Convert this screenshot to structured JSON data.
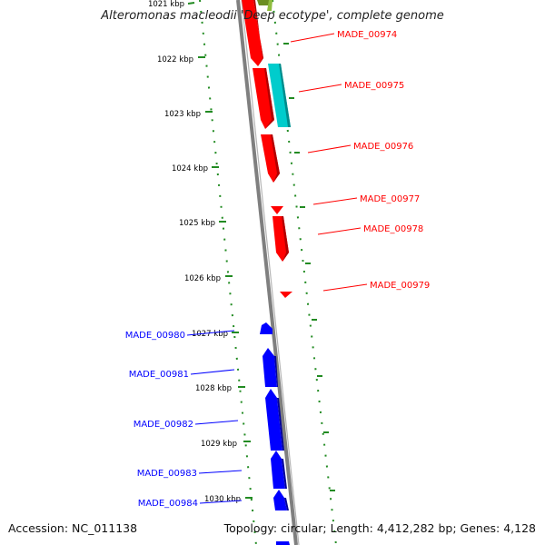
{
  "title": "Alteromonas macleodii 'Deep ecotype', complete genome",
  "accession_label": "Accession: NC_011138",
  "summary_label": "Topology: circular; Length: 4,412,282 bp; Genes: 4,128",
  "colors": {
    "forward_strand": "#ff0000",
    "reverse_strand": "#0000ff",
    "highlight": "#00cccc",
    "olive": "#6b8e23",
    "backbone": "#808080",
    "ruler": "#228b22",
    "text": "#000000"
  },
  "ruler_labels": [
    "1021 kbp",
    "1022 kbp",
    "1023 kbp",
    "1024 kbp",
    "1025 kbp",
    "1026 kbp",
    "1027 kbp",
    "1028 kbp",
    "1029 kbp",
    "1030 kbp"
  ],
  "genes": [
    {
      "name": "MADE_00974",
      "strand": "forward"
    },
    {
      "name": "MADE_00975",
      "strand": "forward"
    },
    {
      "name": "MADE_00976",
      "strand": "forward"
    },
    {
      "name": "MADE_00977",
      "strand": "forward"
    },
    {
      "name": "MADE_00978",
      "strand": "forward"
    },
    {
      "name": "MADE_00979",
      "strand": "forward"
    },
    {
      "name": "MADE_00980",
      "strand": "reverse"
    },
    {
      "name": "MADE_00981",
      "strand": "reverse"
    },
    {
      "name": "MADE_00982",
      "strand": "reverse"
    },
    {
      "name": "MADE_00983",
      "strand": "reverse"
    },
    {
      "name": "MADE_00984",
      "strand": "reverse"
    }
  ]
}
